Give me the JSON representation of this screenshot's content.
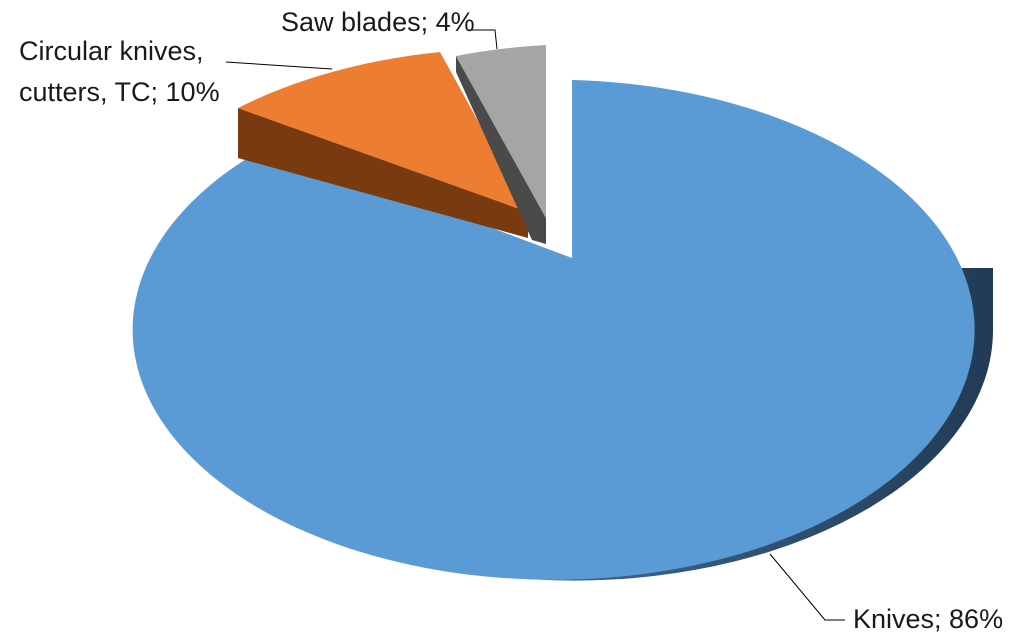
{
  "chart_data": {
    "type": "pie",
    "title": "",
    "three_d": true,
    "exploded": true,
    "slices": [
      {
        "label": "Knives",
        "value": 86,
        "data_label": "Knives; 86%",
        "color": "#5B9BD5",
        "side_color": "#2F4F6F"
      },
      {
        "label": "Circular knives, cutters, TC",
        "value": 10,
        "data_label_lines": [
          "Circular knives,",
          "cutters, TC; 10%"
        ],
        "color": "#ED7D31",
        "side_color": "#7A3A10"
      },
      {
        "label": "Saw blades",
        "value": 4,
        "data_label": "Saw blades; 4%",
        "color": "#A5A5A5",
        "side_color": "#4A4A4A"
      }
    ]
  }
}
